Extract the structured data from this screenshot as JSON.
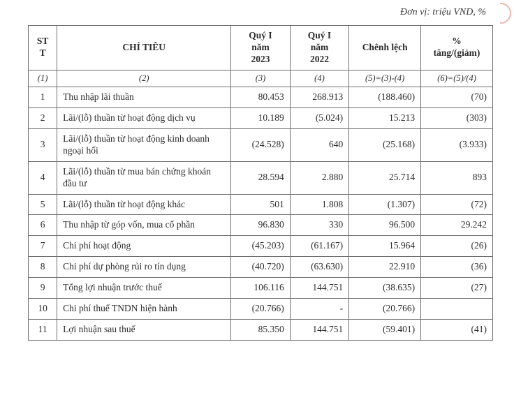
{
  "unitLine": "Đơn vị: triệu VND, %",
  "header": {
    "stt": "ST\nT",
    "chitieu": "CHỈ TIÊU",
    "q1_2023": "Quý I\nnăm\n2023",
    "q1_2022": "Quý I\nnăm\n2022",
    "chenhlech": "Chênh lệch",
    "pct": "%\ntăng/(giảm)"
  },
  "formula": {
    "c1": "(1)",
    "c2": "(2)",
    "c3": "(3)",
    "c4": "(4)",
    "c5": "(5)=(3)-(4)",
    "c6": "(6)=(5)/(4)"
  },
  "rows": [
    {
      "idx": "1",
      "label": "Thu nhập lãi thuần",
      "q1": "80.453",
      "q2": "268.913",
      "diff": "(188.460)",
      "pct": "(70)"
    },
    {
      "idx": "2",
      "label": "Lãi/(lỗ) thuần từ hoạt động dịch vụ",
      "q1": "10.189",
      "q2": "(5.024)",
      "diff": "15.213",
      "pct": "(303)"
    },
    {
      "idx": "3",
      "label": "Lãi/(lỗ) thuần từ hoạt động kinh doanh ngoại hối",
      "q1": "(24.528)",
      "q2": "640",
      "diff": "(25.168)",
      "pct": "(3.933)"
    },
    {
      "idx": "4",
      "label": "Lãi/(lỗ) thuần từ mua bán chứng khoán đầu tư",
      "q1": "28.594",
      "q2": "2.880",
      "diff": "25.714",
      "pct": "893"
    },
    {
      "idx": "5",
      "label": "Lãi/(lỗ) thuần từ hoạt động khác",
      "q1": "501",
      "q2": "1.808",
      "diff": "(1.307)",
      "pct": "(72)"
    },
    {
      "idx": "6",
      "label": "Thu nhập từ góp vốn, mua cổ phần",
      "q1": "96.830",
      "q2": "330",
      "diff": "96.500",
      "pct": "29.242"
    },
    {
      "idx": "7",
      "label": "Chi phí hoạt động",
      "q1": "(45.203)",
      "q2": "(61.167)",
      "diff": "15.964",
      "pct": "(26)"
    },
    {
      "idx": "8",
      "label": "Chi phí dự phòng rủi ro tín dụng",
      "q1": "(40.720)",
      "q2": "(63.630)",
      "diff": "22.910",
      "pct": "(36)"
    },
    {
      "idx": "9",
      "label": "Tổng lợi nhuận trước thuế",
      "q1": "106.116",
      "q2": "144.751",
      "diff": "(38.635)",
      "pct": "(27)"
    },
    {
      "idx": "10",
      "label": "Chi phí thuế TNDN hiện hành",
      "q1": "(20.766)",
      "q2": "-",
      "diff": "(20.766)",
      "pct": ""
    },
    {
      "idx": "11",
      "label": "Lợi nhuận sau thuế",
      "q1": "85.350",
      "q2": "144.751",
      "diff": "(59.401)",
      "pct": "(41)"
    }
  ]
}
